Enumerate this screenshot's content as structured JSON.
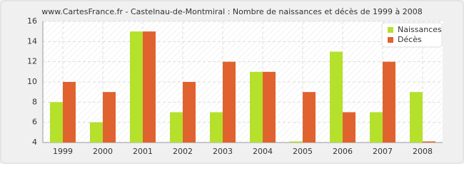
{
  "chart_data": {
    "type": "bar",
    "title": "www.CartesFrance.fr - Castelnau-de-Montmiral : Nombre de naissances et décès de 1999 à 2008",
    "categories": [
      "1999",
      "2000",
      "2001",
      "2002",
      "2003",
      "2004",
      "2005",
      "2006",
      "2007",
      "2008"
    ],
    "series": [
      {
        "name": "Naissances",
        "color": "#b5e12c",
        "values": [
          8,
          6,
          15,
          7,
          7,
          11,
          4,
          13,
          7,
          9
        ]
      },
      {
        "name": "Décès",
        "color": "#e0622e",
        "values": [
          10,
          9,
          15,
          10,
          12,
          11,
          9,
          7,
          12,
          4
        ]
      }
    ],
    "ylim": [
      4,
      16
    ],
    "yticks": [
      4,
      6,
      8,
      10,
      12,
      14,
      16
    ],
    "grid": true,
    "legend": "top-right"
  }
}
